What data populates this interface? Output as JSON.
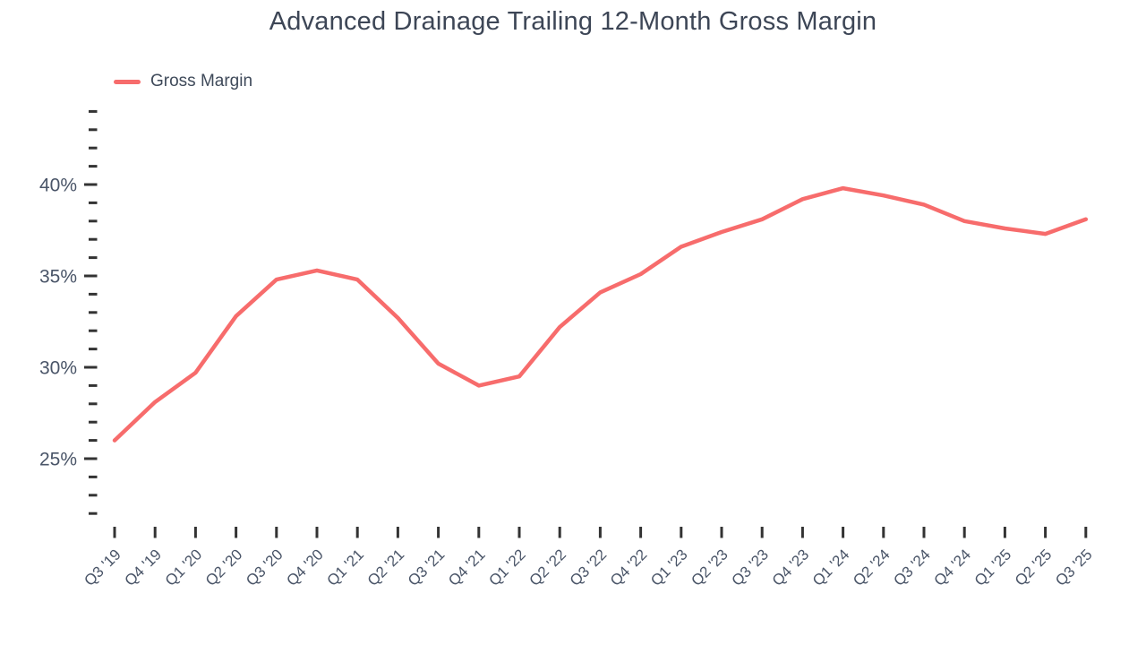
{
  "header": {
    "title": "Advanced Drainage Trailing 12-Month Gross Margin"
  },
  "legend": {
    "label": "Gross Margin",
    "swatch_color": "#f76c6c"
  },
  "colors": {
    "line": "#f76c6c",
    "tick": "#333333",
    "tick_label": "#4a5568",
    "title": "#3d4656",
    "background": "#ffffff"
  },
  "chart_data": {
    "type": "line",
    "title": "Advanced Drainage Trailing 12-Month Gross Margin",
    "xlabel": "",
    "ylabel": "",
    "categories": [
      "Q3 '19",
      "Q4 '19",
      "Q1 '20",
      "Q2 '20",
      "Q3 '20",
      "Q4 '20",
      "Q1 '21",
      "Q2 '21",
      "Q3 '21",
      "Q4 '21",
      "Q1 '22",
      "Q2 '22",
      "Q3 '22",
      "Q4 '22",
      "Q1 '23",
      "Q2 '23",
      "Q3 '23",
      "Q4 '23",
      "Q1 '24",
      "Q2 '24",
      "Q3 '24",
      "Q4 '24",
      "Q1 '25",
      "Q2 '25",
      "Q3 '25"
    ],
    "series": [
      {
        "name": "Gross Margin",
        "color": "#f76c6c",
        "values": [
          26.0,
          28.1,
          29.7,
          32.8,
          34.8,
          35.3,
          34.8,
          32.7,
          30.2,
          29.0,
          29.5,
          32.2,
          34.1,
          35.1,
          36.6,
          37.4,
          38.1,
          39.2,
          39.8,
          39.4,
          38.9,
          38.0,
          37.6,
          37.3,
          38.1
        ]
      }
    ],
    "y_axis": {
      "unit": "%",
      "range": [
        22,
        44
      ],
      "minor_tick_step": 1,
      "major_ticks": [
        25,
        30,
        35,
        40
      ],
      "major_tick_labels": [
        "25%",
        "30%",
        "35%",
        "40%"
      ]
    },
    "layout": {
      "grid": false,
      "axis_lines": false,
      "legend_position": "top-left",
      "x_tick_rotation": -45
    }
  }
}
